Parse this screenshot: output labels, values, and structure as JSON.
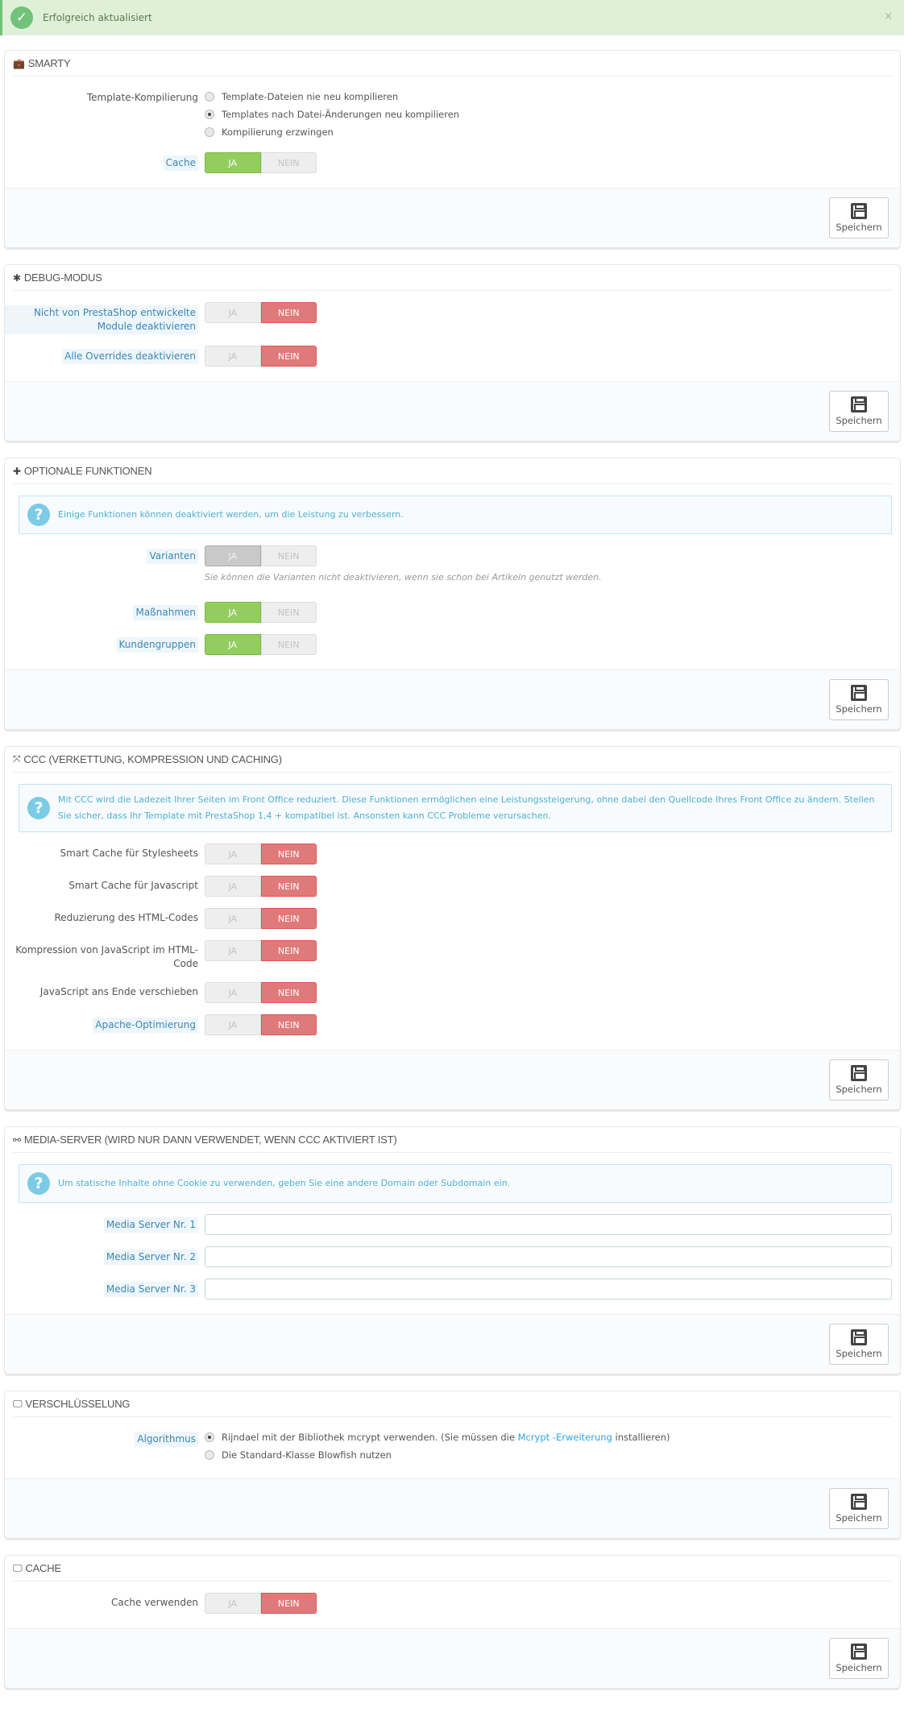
{
  "alert": {
    "text": "Erfolgreich aktualisiert",
    "icon": "check-circle-icon",
    "close": "×"
  },
  "panels": [
    {
      "title": "Smarty",
      "icon": "briefcase-icon",
      "glyph": "💼",
      "save_label": "Speichern",
      "rows": [
        {
          "label": "Template-Kompilierung",
          "highlight": false,
          "type": "radio",
          "options": [
            {
              "text": "Template-Dateien nie neu kompilieren",
              "checked": false
            },
            {
              "text": "Templates nach Datei-Änderungen neu kompilieren",
              "checked": true
            },
            {
              "text": "Kompilierung erzwingen",
              "checked": false
            }
          ]
        },
        {
          "label": "Cache",
          "highlight": true,
          "type": "toggle",
          "value": "ja"
        }
      ]
    },
    {
      "title": "Debug-Modus",
      "icon": "bug-icon",
      "glyph": "✱",
      "save_label": "Speichern",
      "rows": [
        {
          "label": "Nicht von PrestaShop entwickelte Module deaktivieren",
          "highlight": true,
          "type": "toggle",
          "value": "nein"
        },
        {
          "label": "Alle Overrides deaktivieren",
          "highlight": true,
          "type": "toggle",
          "value": "nein"
        }
      ]
    },
    {
      "title": "Optionale Funktionen",
      "icon": "puzzle-icon",
      "glyph": "✚",
      "save_label": "Speichern",
      "info": "Einige Funktionen können deaktiviert werden, um die Leistung zu verbessern.",
      "rows": [
        {
          "label": "Varianten",
          "highlight": true,
          "type": "toggle",
          "value": "ja",
          "disabled": true,
          "help": "Sie können die Varianten nicht deaktivieren, wenn sie schon bei Artikeln genutzt werden."
        },
        {
          "label": "Maßnahmen",
          "highlight": true,
          "type": "toggle",
          "value": "ja"
        },
        {
          "label": "Kundengruppen",
          "highlight": true,
          "type": "toggle",
          "value": "ja"
        }
      ]
    },
    {
      "title": "CCC (Verkettung, Kompression und Caching)",
      "icon": "fullscreen-icon",
      "glyph": "⤧",
      "save_label": "Speichern",
      "info": "Mit CCC wird die Ladezeit Ihrer Seiten im Front Office reduziert. Diese Funktionen ermöglichen eine Leistungssteigerung, ohne dabei den Quellcode Ihres Front Office zu ändern. Stellen Sie sicher, dass Ihr Template mit PrestaShop 1,4 + kompatibel ist. Ansonsten kann CCC Probleme verursachen.",
      "rows": [
        {
          "label": "Smart Cache für Stylesheets",
          "highlight": false,
          "type": "toggle",
          "value": "nein"
        },
        {
          "label": "Smart Cache für Javascript",
          "highlight": false,
          "type": "toggle",
          "value": "nein"
        },
        {
          "label": "Reduzierung des HTML-Codes",
          "highlight": false,
          "type": "toggle",
          "value": "nein"
        },
        {
          "label": "Kompression von JavaScript im HTML-Code",
          "highlight": false,
          "type": "toggle",
          "value": "nein"
        },
        {
          "label": "JavaScript ans Ende verschieben",
          "highlight": false,
          "type": "toggle",
          "value": "nein"
        },
        {
          "label": "Apache-Optimierung",
          "highlight": true,
          "type": "toggle",
          "value": "nein"
        }
      ]
    },
    {
      "title": "Media-Server (wird nur dann verwendet, wenn CCC aktiviert ist)",
      "icon": "link-icon",
      "glyph": "⚯",
      "save_label": "Speichern",
      "info": "Um statische Inhalte ohne Cookie zu verwenden, geben Sie eine andere Domain oder Subdomain ein.",
      "rows": [
        {
          "label": "Media Server Nr. 1",
          "highlight": true,
          "type": "text",
          "value": ""
        },
        {
          "label": "Media Server Nr. 2",
          "highlight": true,
          "type": "text",
          "value": ""
        },
        {
          "label": "Media Server Nr. 3",
          "highlight": true,
          "type": "text",
          "value": ""
        }
      ]
    },
    {
      "title": "Verschlüsselung",
      "icon": "desktop-icon",
      "glyph": "🖵",
      "save_label": "Speichern",
      "rows": [
        {
          "label": "Algorithmus",
          "highlight": true,
          "type": "radio",
          "options": [
            {
              "text": "Rijndael mit der Bibliothek mcrypt verwenden. (Sie müssen die ",
              "link": "Mcrypt -Erweiterung",
              "after": " installieren)",
              "checked": true
            },
            {
              "text": "Die Standard-Klasse Blowfish nutzen",
              "checked": false
            }
          ]
        }
      ]
    },
    {
      "title": "Cache",
      "icon": "desktop-icon",
      "glyph": "🖵",
      "save_label": "Speichern",
      "rows": [
        {
          "label": "Cache verwenden",
          "highlight": false,
          "type": "toggle",
          "value": "nein"
        }
      ]
    }
  ],
  "toggle_labels": {
    "yes": "JA",
    "no": "NEIN"
  },
  "colors": {
    "yes": "#92cd5d",
    "no": "#e07a7a",
    "success": "#72c279",
    "info": "#7ccbe6"
  }
}
